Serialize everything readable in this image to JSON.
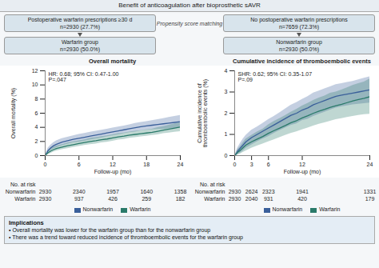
{
  "title": "Benefit of anticoagulation after bioprosthetic sAVR",
  "cohort_boxes": [
    [
      "Postoperative warfarin prescriptions ≥30 d",
      "n=2930 (27.7%)"
    ],
    [
      "No postoperative warfarin prescriptions",
      "n=7659 (72.3%)"
    ]
  ],
  "matching_label": "Propensity score matching",
  "group_boxes": [
    [
      "Warfarin group",
      "n=2930 (50.0%)"
    ],
    [
      "Nonwarfarin group",
      "n=2930 (50.0%)"
    ]
  ],
  "chart_data": [
    {
      "type": "line",
      "title": "Overall mortality",
      "x_label": "Follow-up (mo)",
      "y_label": "Overall mortality (%)",
      "annotations": [
        "HR: 0.68; 95% CI: 0.47-1.00\nP=.047"
      ],
      "x": [
        0,
        0.3,
        0.5,
        1,
        1.5,
        2,
        3,
        4,
        5,
        6,
        7,
        8,
        9,
        10,
        11,
        12,
        13,
        14,
        15,
        16,
        17,
        18,
        19,
        20,
        21,
        22,
        23,
        24
      ],
      "series": [
        {
          "name": "Nonwarfarin",
          "color": "#3a5f9a",
          "values": [
            0,
            0.4,
            0.7,
            1.1,
            1.4,
            1.6,
            1.9,
            2.1,
            2.3,
            2.45,
            2.6,
            2.75,
            2.9,
            3.05,
            3.2,
            3.35,
            3.5,
            3.65,
            3.8,
            3.95,
            4.1,
            4.2,
            4.3,
            4.4,
            4.5,
            4.6,
            4.7,
            4.8
          ],
          "ci_low": [
            0,
            0.15,
            0.35,
            0.7,
            0.95,
            1.1,
            1.4,
            1.6,
            1.8,
            1.9,
            2.05,
            2.2,
            2.35,
            2.5,
            2.65,
            2.8,
            2.95,
            3.1,
            3.25,
            3.35,
            3.5,
            3.6,
            3.65,
            3.7,
            3.75,
            3.8,
            3.85,
            3.9
          ],
          "ci_high": [
            0,
            0.65,
            1.05,
            1.5,
            1.85,
            2.1,
            2.4,
            2.6,
            2.8,
            3.0,
            3.15,
            3.3,
            3.45,
            3.6,
            3.75,
            3.9,
            4.05,
            4.2,
            4.35,
            4.55,
            4.7,
            4.8,
            4.95,
            5.1,
            5.25,
            5.4,
            5.55,
            5.7
          ]
        },
        {
          "name": "Warfarin",
          "color": "#2a7a6a",
          "values": [
            0,
            0.25,
            0.4,
            0.65,
            0.85,
            1.0,
            1.2,
            1.4,
            1.55,
            1.7,
            1.85,
            2.0,
            2.1,
            2.25,
            2.35,
            2.5,
            2.65,
            2.75,
            2.9,
            3.0,
            3.1,
            3.2,
            3.3,
            3.45,
            3.6,
            3.75,
            3.9,
            4.05
          ],
          "ci_low": [
            0,
            0.05,
            0.15,
            0.3,
            0.5,
            0.65,
            0.85,
            1.0,
            1.15,
            1.3,
            1.45,
            1.55,
            1.65,
            1.8,
            1.9,
            2.05,
            2.2,
            2.3,
            2.45,
            2.55,
            2.65,
            2.75,
            2.85,
            2.95,
            3.1,
            3.2,
            3.3,
            3.4
          ],
          "ci_high": [
            0,
            0.45,
            0.65,
            1.0,
            1.2,
            1.35,
            1.55,
            1.8,
            1.95,
            2.1,
            2.25,
            2.45,
            2.55,
            2.7,
            2.8,
            2.95,
            3.1,
            3.2,
            3.35,
            3.45,
            3.55,
            3.65,
            3.75,
            3.95,
            4.1,
            4.3,
            4.5,
            4.7
          ]
        }
      ],
      "xlim": [
        0,
        24
      ],
      "xticks": [
        0,
        6,
        12,
        18,
        24
      ],
      "ylim": [
        0,
        12
      ],
      "yticks": [
        0,
        2,
        4,
        6,
        8,
        10,
        12
      ],
      "grid": false,
      "legend": "bottom",
      "risk_table": {
        "title": "No. at risk",
        "x": [
          0,
          6,
          12,
          18,
          24
        ],
        "rows": [
          {
            "name": "Nonwarfarin",
            "values": [
              2930,
              2340,
              1957,
              1640,
              1358
            ]
          },
          {
            "name": "Warfarin",
            "values": [
              2930,
              937,
              426,
              259,
              182
            ]
          }
        ]
      }
    },
    {
      "type": "line",
      "title": "Cumulative incidence of thromboembolic events",
      "x_label": "Follow-up (mo)",
      "y_label": "Cumulative incidence of\nthromboembolic events (%)",
      "annotations": [
        "SHR: 0.62; 95% CI: 0.35-1.07\nP=.09"
      ],
      "x": [
        0,
        0.3,
        0.5,
        1,
        1.5,
        2,
        3,
        4,
        5,
        6,
        7,
        8,
        9,
        10,
        11,
        12,
        13,
        14,
        15,
        16,
        17,
        18,
        19,
        20,
        21,
        22,
        23,
        24
      ],
      "series": [
        {
          "name": "Nonwarfarin",
          "color": "#3a5f9a",
          "values": [
            0,
            0.1,
            0.2,
            0.35,
            0.5,
            0.65,
            0.85,
            1.0,
            1.15,
            1.3,
            1.45,
            1.6,
            1.75,
            1.9,
            2.0,
            2.15,
            2.25,
            2.4,
            2.5,
            2.6,
            2.7,
            2.8,
            2.85,
            2.9,
            2.95,
            3.0,
            3.05,
            3.1
          ],
          "ci_low": [
            0,
            0.02,
            0.05,
            0.12,
            0.22,
            0.35,
            0.5,
            0.65,
            0.78,
            0.9,
            1.05,
            1.18,
            1.3,
            1.42,
            1.5,
            1.65,
            1.72,
            1.85,
            1.95,
            2.05,
            2.15,
            2.25,
            2.3,
            2.35,
            2.4,
            2.42,
            2.45,
            2.48
          ],
          "ci_high": [
            0,
            0.18,
            0.35,
            0.58,
            0.78,
            0.95,
            1.2,
            1.35,
            1.52,
            1.7,
            1.85,
            2.02,
            2.2,
            2.38,
            2.5,
            2.65,
            2.78,
            2.95,
            3.05,
            3.15,
            3.25,
            3.35,
            3.4,
            3.45,
            3.5,
            3.58,
            3.65,
            3.72
          ]
        },
        {
          "name": "Warfarin",
          "color": "#2a7a6a",
          "values": [
            0,
            0.08,
            0.15,
            0.25,
            0.38,
            0.5,
            0.65,
            0.78,
            0.9,
            1.05,
            1.18,
            1.3,
            1.42,
            1.55,
            1.65,
            1.78,
            1.88,
            2.0,
            2.1,
            2.18,
            2.28,
            2.35,
            2.42,
            2.5,
            2.58,
            2.65,
            2.7,
            2.78
          ],
          "ci_low": [
            0,
            0.01,
            0.03,
            0.08,
            0.15,
            0.22,
            0.35,
            0.45,
            0.55,
            0.65,
            0.75,
            0.85,
            0.95,
            1.05,
            1.12,
            1.22,
            1.3,
            1.4,
            1.48,
            1.55,
            1.62,
            1.7,
            1.75,
            1.8,
            1.85,
            1.9,
            1.93,
            1.95
          ],
          "ci_high": [
            0,
            0.15,
            0.27,
            0.42,
            0.61,
            0.78,
            0.95,
            1.11,
            1.25,
            1.45,
            1.61,
            1.75,
            1.89,
            2.05,
            2.18,
            2.34,
            2.46,
            2.6,
            2.72,
            2.81,
            2.94,
            3.0,
            3.09,
            3.2,
            3.31,
            3.4,
            3.47,
            3.61
          ]
        }
      ],
      "xlim": [
        0,
        24
      ],
      "xticks": [
        0,
        3,
        6,
        12,
        24
      ],
      "ylim": [
        0,
        4
      ],
      "yticks": [
        0,
        1,
        2,
        3,
        4
      ],
      "grid": false,
      "legend": "bottom",
      "risk_table": {
        "title": "No. at risk",
        "x": [
          0,
          3,
          6,
          12,
          24
        ],
        "rows": [
          {
            "name": "Nonwarfarin",
            "values": [
              2930,
              2624,
              2323,
              1941,
              1331
            ]
          },
          {
            "name": "Warfarin",
            "values": [
              2930,
              2040,
              931,
              420,
              179
            ]
          }
        ]
      }
    }
  ],
  "notes_title": "Implications",
  "notes": [
    "• Overall mortality was lower for the warfarin group than for the nonwarfarin group",
    "• There was a trend toward reduced incidence of thromboembolic events for the warfarin group"
  ]
}
